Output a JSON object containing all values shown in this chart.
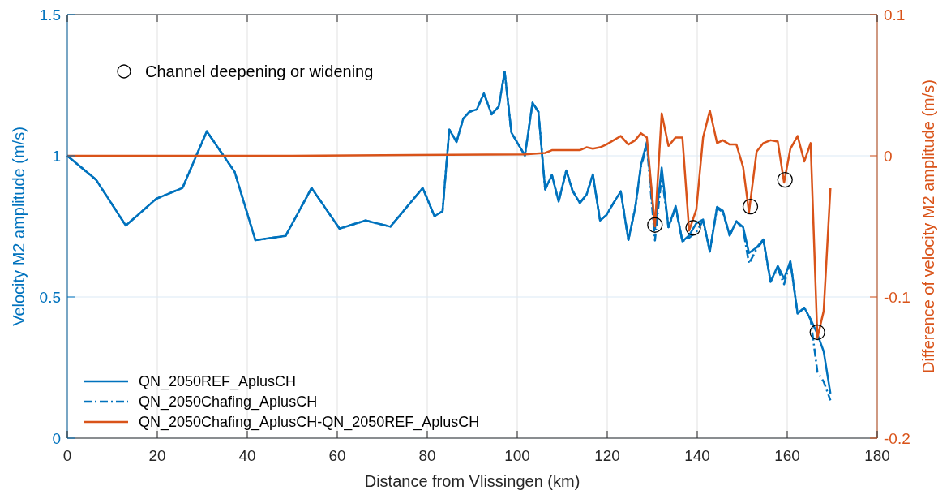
{
  "chart_data": {
    "type": "line",
    "xlabel": "Distance from Vlissingen (km)",
    "ylabel": "Velocity M2 amplitude (m/s)",
    "y2label": "Difference of velocity M2 amplitude (m/s)",
    "xlim": [
      0,
      180
    ],
    "xticks": [
      0,
      20,
      40,
      60,
      80,
      100,
      120,
      140,
      160,
      180
    ],
    "ylim": [
      0,
      1.5
    ],
    "yticks": [
      0,
      0.5,
      1,
      1.5
    ],
    "y2lim": [
      -0.2,
      0.1
    ],
    "y2ticks": [
      -0.2,
      -0.1,
      0,
      0.1
    ],
    "grid": true,
    "legend": "bottom left",
    "series": [
      {
        "name": "QN_2050REF_AplusCH",
        "color": "#0072bd",
        "line_style": "solid",
        "x": [
          0,
          6.4,
          13.0,
          19.8,
          25.6,
          31.0,
          37.2,
          41.8,
          48.5,
          54.3,
          60.5,
          66.3,
          71.8,
          79.0,
          81.6,
          83.4,
          84.9,
          86.5,
          88.0,
          89.4,
          91.0,
          92.6,
          94.3,
          95.9,
          97.2,
          98.7,
          101.7,
          103.4,
          104.7,
          106.2,
          107.7,
          109.2,
          110.9,
          112.3,
          113.9,
          115.4,
          116.8,
          118.4,
          119.8,
          121.4,
          123.0,
          124.7,
          126.2,
          127.5,
          128.8,
          130.6,
          132.1,
          133.6,
          135.2,
          136.7,
          138.2,
          139.8,
          141.3,
          142.8,
          144.4,
          145.7,
          147.2,
          148.7,
          150.2,
          151.5,
          153.2,
          154.7,
          156.3,
          157.9,
          159.3,
          160.7,
          162.3,
          163.8,
          165.2,
          166.7,
          168.1,
          169.6
        ],
        "values": [
          1.0,
          0.915,
          0.753,
          0.848,
          0.886,
          1.087,
          0.943,
          0.701,
          0.716,
          0.886,
          0.742,
          0.771,
          0.749,
          0.886,
          0.786,
          0.804,
          1.093,
          1.049,
          1.132,
          1.156,
          1.164,
          1.221,
          1.147,
          1.175,
          1.298,
          1.082,
          1.001,
          1.188,
          1.156,
          0.881,
          0.932,
          0.838,
          0.948,
          0.876,
          0.833,
          0.862,
          0.934,
          0.771,
          0.79,
          0.833,
          0.874,
          0.702,
          0.814,
          0.968,
          1.049,
          0.74,
          0.958,
          0.747,
          0.822,
          0.697,
          0.718,
          0.761,
          0.774,
          0.661,
          0.819,
          0.805,
          0.718,
          0.768,
          0.747,
          0.656,
          0.675,
          0.704,
          0.554,
          0.61,
          0.565,
          0.627,
          0.441,
          0.462,
          0.421,
          0.369,
          0.307,
          0.158
        ]
      },
      {
        "name": "QN_2050Chafing_AplusCH",
        "color": "#0072bd",
        "line_style": "dashed",
        "x": [
          0,
          6.4,
          13.0,
          19.8,
          25.6,
          31.0,
          37.2,
          41.8,
          48.5,
          54.3,
          60.5,
          66.3,
          71.8,
          79.0,
          81.6,
          83.4,
          84.9,
          86.5,
          88.0,
          89.4,
          91.0,
          92.6,
          94.3,
          95.9,
          97.2,
          98.7,
          101.7,
          103.4,
          104.7,
          106.2,
          107.7,
          109.2,
          110.9,
          112.3,
          113.9,
          115.4,
          116.8,
          118.4,
          119.8,
          121.4,
          123.0,
          124.7,
          126.2,
          127.5,
          128.8,
          130.6,
          132.1,
          133.6,
          135.2,
          136.7,
          138.2,
          139.8,
          141.3,
          142.8,
          144.4,
          145.7,
          147.2,
          148.7,
          150.2,
          151.5,
          153.2,
          154.7,
          156.3,
          157.9,
          159.3,
          160.7,
          162.3,
          163.8,
          165.2,
          166.7,
          168.1,
          169.6
        ],
        "values": [
          1.0,
          0.915,
          0.753,
          0.848,
          0.886,
          1.087,
          0.943,
          0.701,
          0.716,
          0.886,
          0.742,
          0.771,
          0.749,
          0.886,
          0.786,
          0.804,
          1.093,
          1.049,
          1.132,
          1.156,
          1.164,
          1.221,
          1.147,
          1.175,
          1.298,
          1.082,
          1.001,
          1.188,
          1.156,
          0.881,
          0.932,
          0.838,
          0.948,
          0.876,
          0.833,
          0.862,
          0.934,
          0.771,
          0.79,
          0.833,
          0.874,
          0.702,
          0.814,
          0.96,
          1.04,
          0.7,
          0.93,
          0.747,
          0.815,
          0.697,
          0.71,
          0.73,
          0.77,
          0.661,
          0.815,
          0.8,
          0.718,
          0.768,
          0.74,
          0.618,
          0.67,
          0.7,
          0.554,
          0.6,
          0.545,
          0.627,
          0.441,
          0.462,
          0.42,
          0.235,
          0.2,
          0.134
        ]
      },
      {
        "name": "QN_2050Chafing_AplusCH-QN_2050REF_AplusCH",
        "color": "#d95319",
        "line_style": "solid",
        "axis": "y2",
        "x": [
          0,
          50,
          101.7,
          106.2,
          107.7,
          109.2,
          110.9,
          113.9,
          115.4,
          116.8,
          118.4,
          119.8,
          121.4,
          123.0,
          124.7,
          126.2,
          127.5,
          128.8,
          130.6,
          132.1,
          133.6,
          135.2,
          136.7,
          138.2,
          139.8,
          141.3,
          142.8,
          144.4,
          145.7,
          147.2,
          148.7,
          150.2,
          151.5,
          153.2,
          154.7,
          156.3,
          157.9,
          159.3,
          160.7,
          162.3,
          163.8,
          165.2,
          166.7,
          168.1,
          169.6
        ],
        "values": [
          0,
          0,
          0.001,
          0.002,
          0.004,
          0.004,
          0.004,
          0.004,
          0.006,
          0.005,
          0.006,
          0.008,
          0.011,
          0.014,
          0.008,
          0.011,
          0.016,
          0.013,
          -0.05,
          0.03,
          0.007,
          0.013,
          0.013,
          -0.053,
          -0.038,
          0.013,
          0.032,
          0.009,
          0.011,
          0.008,
          0.008,
          -0.008,
          -0.04,
          0.003,
          0.009,
          0.011,
          0.01,
          -0.019,
          0.005,
          0.014,
          -0.004,
          0.009,
          -0.129,
          -0.11,
          -0.023
        ]
      },
      {
        "name": "Channel deepening or widening",
        "type": "scatter",
        "marker": "circle",
        "color": "#000000",
        "axis": "y2",
        "x": [
          130.6,
          139.1,
          151.8,
          159.5,
          166.7
        ],
        "values": [
          -0.049,
          -0.051,
          -0.036,
          -0.017,
          -0.125
        ]
      }
    ]
  }
}
